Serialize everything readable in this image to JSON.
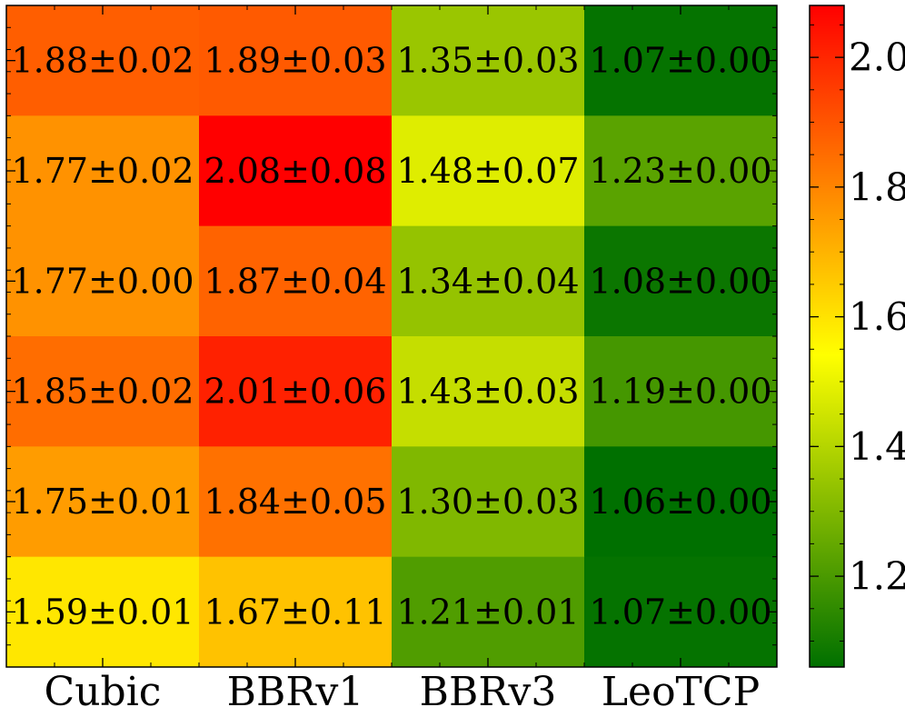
{
  "chart_data": {
    "type": "heatmap",
    "x_categories": [
      "Cubic",
      "BBRv1",
      "BBRv3",
      "LeoTCP"
    ],
    "rows": [
      {
        "values": [
          1.88,
          1.89,
          1.35,
          1.07
        ],
        "labels": [
          "1.88±0.02",
          "1.89±0.03",
          "1.35±0.03",
          "1.07±0.00"
        ]
      },
      {
        "values": [
          1.77,
          2.08,
          1.48,
          1.23
        ],
        "labels": [
          "1.77±0.02",
          "2.08±0.08",
          "1.48±0.07",
          "1.23±0.00"
        ]
      },
      {
        "values": [
          1.77,
          1.87,
          1.34,
          1.08
        ],
        "labels": [
          "1.77±0.00",
          "1.87±0.04",
          "1.34±0.04",
          "1.08±0.00"
        ]
      },
      {
        "values": [
          1.85,
          2.01,
          1.43,
          1.19
        ],
        "labels": [
          "1.85±0.02",
          "2.01±0.06",
          "1.43±0.03",
          "1.19±0.00"
        ]
      },
      {
        "values": [
          1.75,
          1.84,
          1.3,
          1.06
        ],
        "labels": [
          "1.75±0.01",
          "1.84±0.05",
          "1.30±0.03",
          "1.06±0.00"
        ]
      },
      {
        "values": [
          1.59,
          1.67,
          1.21,
          1.07
        ],
        "labels": [
          "1.59±0.01",
          "1.67±0.11",
          "1.21±0.01",
          "1.07±0.00"
        ]
      }
    ],
    "colorbar": {
      "range": [
        1.06,
        2.08
      ],
      "ticks": [
        1.2,
        1.4,
        1.6,
        1.8,
        2.0
      ],
      "tick_labels": [
        "1.2",
        "1.4",
        "1.6",
        "1.8",
        "2.0"
      ],
      "colormap": [
        "#007000",
        "#ffff00",
        "#ff0000"
      ]
    },
    "y_tick_labels_shown": false,
    "title": "",
    "xlabel": "",
    "ylabel": ""
  }
}
